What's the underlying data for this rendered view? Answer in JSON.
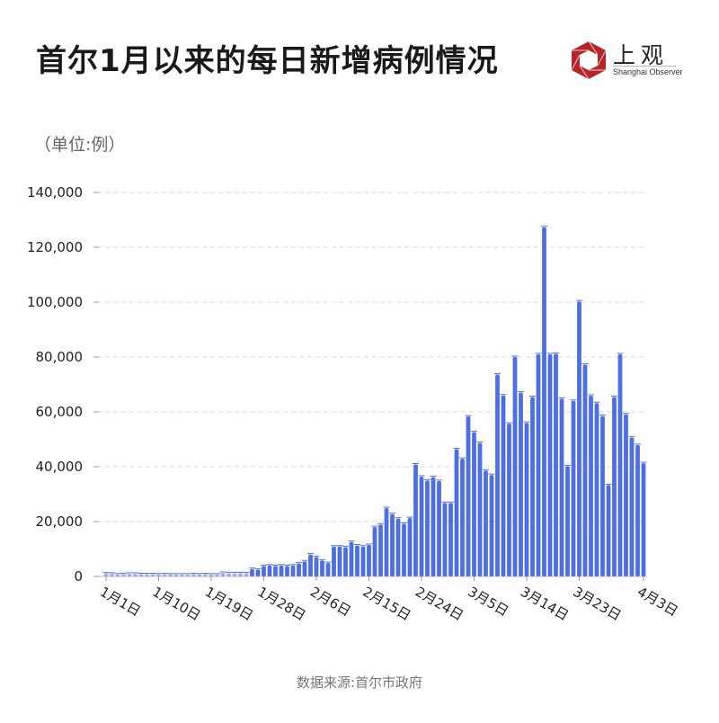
{
  "header": {
    "title": "首尔1月以来的每日新增病例情况",
    "unit": "（单位:例）",
    "logo_cn": "上观",
    "logo_en": "Shanghai Observer"
  },
  "footer": {
    "source": "数据来源:首尔市政府"
  },
  "colors": {
    "bar": "#4e6fe3",
    "grid": "#d8d8d8",
    "logo_red": "#b5262b"
  },
  "chart_data": {
    "type": "bar",
    "title": "首尔1月以来的每日新增病例情况",
    "xlabel": "",
    "ylabel": "（单位:例）",
    "ylim": [
      0,
      140000
    ],
    "yticks": [
      0,
      20000,
      40000,
      60000,
      80000,
      100000,
      120000,
      140000
    ],
    "ytick_labels": [
      "0",
      "20,000",
      "40,000",
      "60,000",
      "80,000",
      "100,000",
      "120,000",
      "140,000"
    ],
    "grid": true,
    "x_start": "1月1日",
    "x_end": "4月3日",
    "xtick_index": [
      0,
      9,
      18,
      27,
      36,
      45,
      54,
      63,
      72,
      81,
      92
    ],
    "xtick_labels": [
      "1月1日",
      "1月10日",
      "1月19日",
      "1月28日",
      "2月6日",
      "2月15日",
      "2月24日",
      "3月5日",
      "3月14日",
      "3月23日",
      "4月3日"
    ],
    "values": [
      1100,
      1000,
      700,
      800,
      1000,
      1000,
      800,
      800,
      800,
      700,
      800,
      700,
      700,
      700,
      700,
      800,
      700,
      800,
      700,
      700,
      1300,
      1200,
      1200,
      1200,
      1100,
      2700,
      2500,
      3800,
      4000,
      3800,
      4000,
      3800,
      4000,
      4700,
      5500,
      8000,
      7100,
      5800,
      4900,
      10900,
      10900,
      10700,
      12600,
      11300,
      10900,
      11500,
      18000,
      18900,
      24900,
      22700,
      21100,
      19200,
      21300,
      40800,
      36400,
      35000,
      36200,
      34800,
      26800,
      26800,
      46400,
      42900,
      58300,
      52600,
      48700,
      38600,
      37000,
      73600,
      66000,
      55700,
      80000,
      67000,
      56000,
      65400,
      81000,
      127300,
      81000,
      81200,
      64800,
      40200,
      64000,
      100300,
      77200,
      65900,
      63200,
      58500,
      33300,
      65400,
      81000,
      59100,
      50600,
      47900,
      41300
    ]
  }
}
